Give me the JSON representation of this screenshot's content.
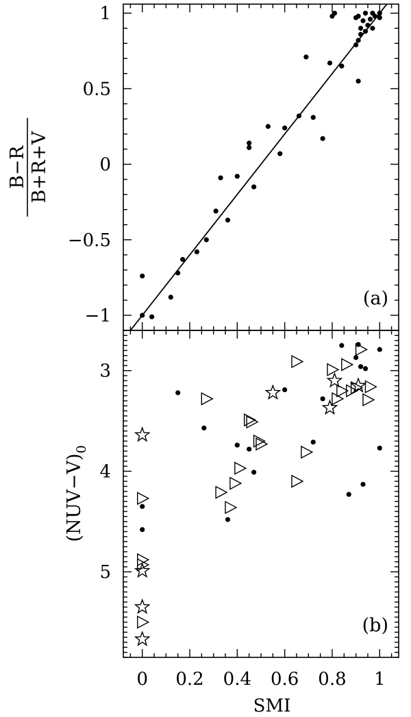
{
  "chart_data": [
    {
      "panel_label": "(a)",
      "type": "scatter",
      "xlim": [
        -0.08,
        1.08
      ],
      "ylim": [
        -1.1,
        1.06
      ],
      "xticks": [
        0,
        0.2,
        0.4,
        0.6,
        0.8,
        1
      ],
      "ytick_labels": [
        {
          "value": 1,
          "label": "1"
        },
        {
          "value": 0.5,
          "label": "0.5"
        },
        {
          "value": 0,
          "label": "0"
        },
        {
          "value": -0.5,
          "label": "−0.5"
        },
        {
          "value": -1,
          "label": "−1"
        }
      ],
      "ylabel_numerator": "B−R",
      "ylabel_denominator": "B+R+V",
      "line": {
        "x": [
          -0.05,
          1.06
        ],
        "y": [
          -1.1,
          1.12
        ]
      },
      "series": [
        {
          "marker": "filled-circle",
          "points": [
            [
              0,
              -1.0
            ],
            [
              0.0,
              -0.74
            ],
            [
              0.04,
              -1.01
            ],
            [
              0.12,
              -0.88
            ],
            [
              0.15,
              -0.72
            ],
            [
              0.17,
              -0.63
            ],
            [
              0.23,
              -0.58
            ],
            [
              0.27,
              -0.5
            ],
            [
              0.31,
              -0.31
            ],
            [
              0.33,
              -0.09
            ],
            [
              0.36,
              -0.37
            ],
            [
              0.4,
              -0.08
            ],
            [
              0.45,
              0.11
            ],
            [
              0.45,
              0.14
            ],
            [
              0.47,
              -0.15
            ],
            [
              0.53,
              0.25
            ],
            [
              0.58,
              0.07
            ],
            [
              0.6,
              0.24
            ],
            [
              0.66,
              0.32
            ],
            [
              0.69,
              0.71
            ],
            [
              0.72,
              0.31
            ],
            [
              0.76,
              0.17
            ],
            [
              0.79,
              0.67
            ],
            [
              0.8,
              0.98
            ],
            [
              0.81,
              1.0
            ],
            [
              0.84,
              0.65
            ],
            [
              0.9,
              0.79
            ],
            [
              0.91,
              0.55
            ],
            [
              0.91,
              0.82
            ],
            [
              0.9,
              0.97
            ],
            [
              0.91,
              0.98
            ],
            [
              0.92,
              0.86
            ],
            [
              0.92,
              0.9
            ],
            [
              0.93,
              0.95
            ],
            [
              0.94,
              1.0
            ],
            [
              0.94,
              0.88
            ],
            [
              0.95,
              0.92
            ],
            [
              0.96,
              0.96
            ],
            [
              0.97,
              0.9
            ],
            [
              0.97,
              1.0
            ],
            [
              0.98,
              0.98
            ],
            [
              1.0,
              0.97
            ],
            [
              1.0,
              1.0
            ]
          ]
        }
      ]
    },
    {
      "panel_label": "(b)",
      "type": "scatter",
      "xlim": [
        -0.08,
        1.08
      ],
      "ylim": [
        5.85,
        2.6
      ],
      "y_inverted": true,
      "xticks": [
        0,
        0.2,
        0.4,
        0.6,
        0.8,
        1
      ],
      "xtick_labels": [
        "0",
        "0.2",
        "0.4",
        "0.6",
        "0.8",
        "1"
      ],
      "ytick_labels": [
        {
          "value": 3,
          "label": "3"
        },
        {
          "value": 4,
          "label": "4"
        },
        {
          "value": 5,
          "label": "5"
        }
      ],
      "xlabel": "SMI",
      "ylabel": "(NUV−V)",
      "ylabel_subscript": "0",
      "series": [
        {
          "marker": "filled-circle",
          "points": [
            [
              0.0,
              4.35
            ],
            [
              0.0,
              4.58
            ],
            [
              0.15,
              3.22
            ],
            [
              0.26,
              3.57
            ],
            [
              0.36,
              4.48
            ],
            [
              0.4,
              3.74
            ],
            [
              0.45,
              3.78
            ],
            [
              0.47,
              4.01
            ],
            [
              0.6,
              3.19
            ],
            [
              0.72,
              3.71
            ],
            [
              0.76,
              3.28
            ],
            [
              0.87,
              4.23
            ],
            [
              0.84,
              2.75
            ],
            [
              0.91,
              2.74
            ],
            [
              0.92,
              2.96
            ],
            [
              0.94,
              2.98
            ],
            [
              0.9,
              2.87
            ],
            [
              0.93,
              4.13
            ],
            [
              1.0,
              2.79
            ],
            [
              1.0,
              3.77
            ]
          ]
        },
        {
          "marker": "open-triangle-right",
          "points": [
            [
              0.0,
              4.27
            ],
            [
              0.0,
              4.88
            ],
            [
              0.0,
              4.93
            ],
            [
              0.0,
              5.5
            ],
            [
              0.27,
              3.28
            ],
            [
              0.33,
              4.21
            ],
            [
              0.37,
              4.36
            ],
            [
              0.39,
              4.12
            ],
            [
              0.41,
              3.97
            ],
            [
              0.45,
              3.49
            ],
            [
              0.46,
              3.51
            ],
            [
              0.49,
              3.7
            ],
            [
              0.5,
              3.73
            ],
            [
              0.65,
              2.91
            ],
            [
              0.65,
              4.1
            ],
            [
              0.69,
              3.81
            ],
            [
              0.8,
              2.99
            ],
            [
              0.82,
              3.28
            ],
            [
              0.84,
              3.2
            ],
            [
              0.86,
              2.94
            ],
            [
              0.88,
              3.2
            ],
            [
              0.9,
              3.17
            ],
            [
              0.92,
              2.79
            ],
            [
              0.95,
              3.29
            ],
            [
              0.96,
              3.16
            ]
          ]
        },
        {
          "marker": "open-star",
          "points": [
            [
              0.0,
              3.64
            ],
            [
              0.0,
              4.99
            ],
            [
              0.0,
              5.35
            ],
            [
              0.0,
              5.67
            ],
            [
              0.55,
              3.22
            ],
            [
              0.79,
              3.37
            ],
            [
              0.81,
              3.1
            ],
            [
              0.91,
              3.15
            ]
          ]
        }
      ]
    }
  ]
}
